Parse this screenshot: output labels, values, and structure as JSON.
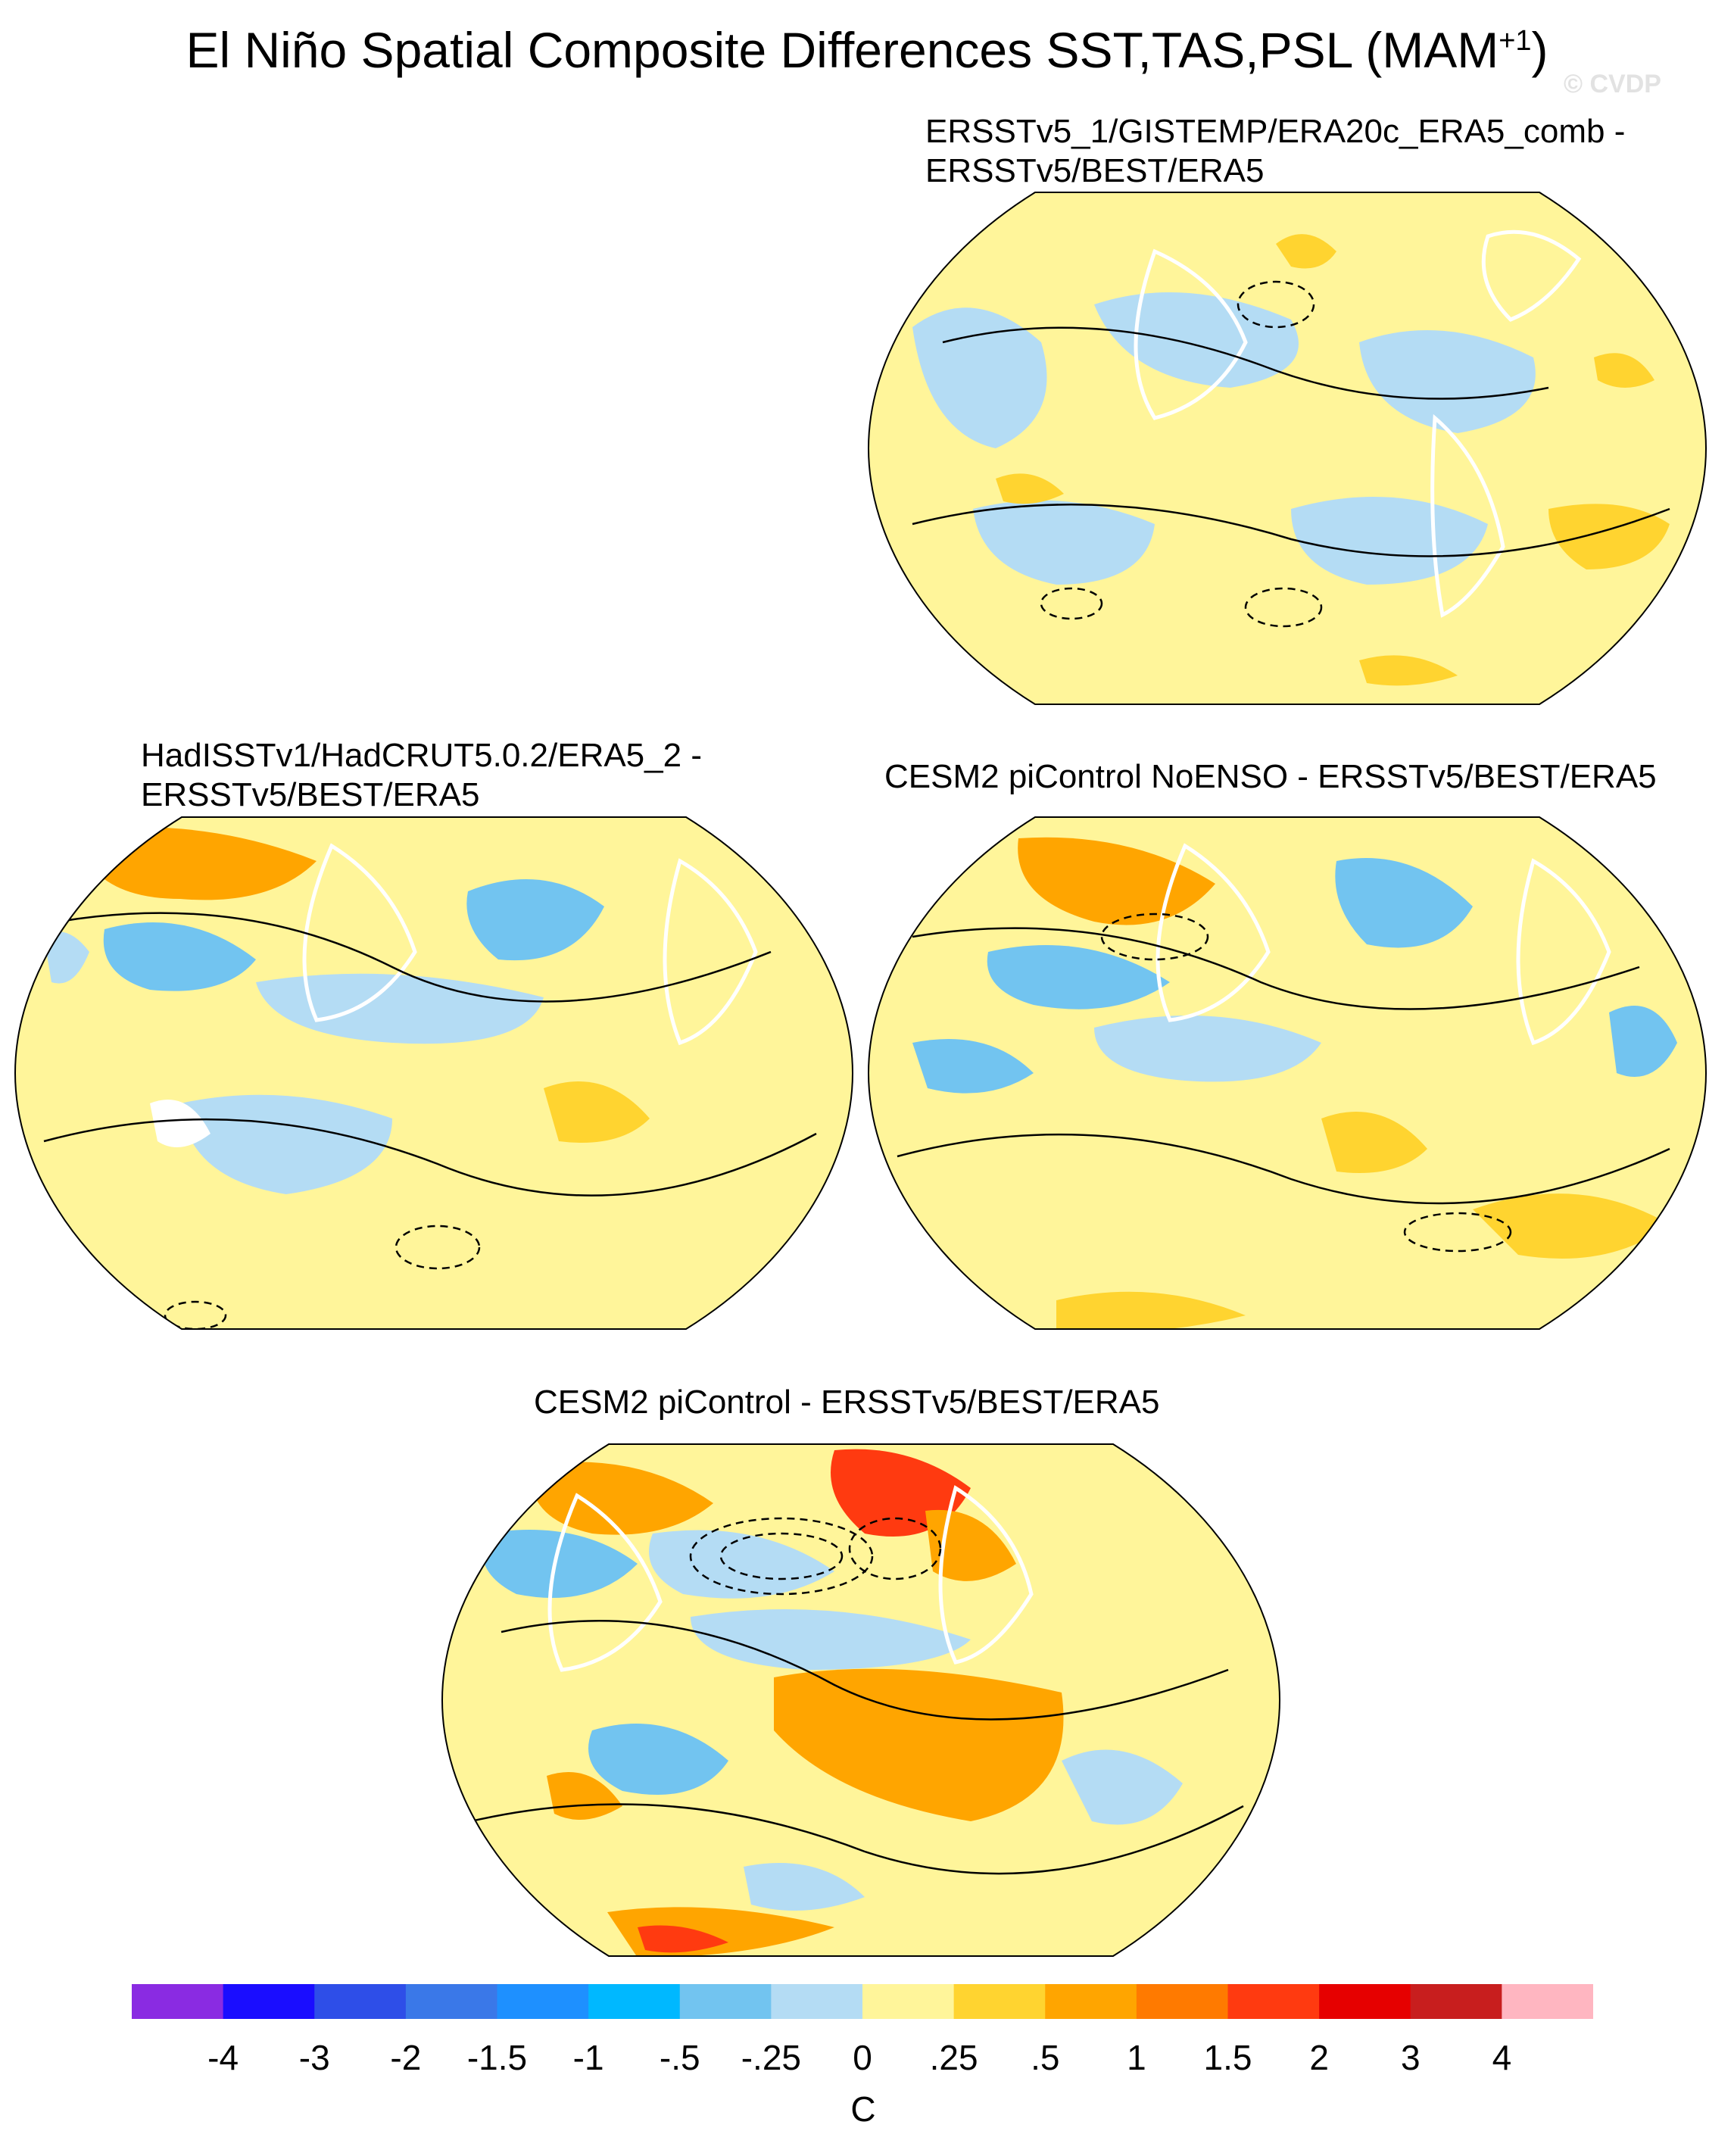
{
  "title": {
    "main": "El Niño Spatial Composite Differences SST,TAS,PSL (MAM",
    "sup": "+1",
    "close": ")"
  },
  "watermark": "© CVDP",
  "panels": [
    {
      "line1": "ERSSTv5_1/GISTEMP/ERA20c_ERA5_comb -",
      "line2": "ERSSTv5/BEST/ERA5"
    },
    {
      "line1": "HadISSTv1/HadCRUT5.0.2/ERA5_2 -",
      "line2": "ERSSTv5/BEST/ERA5"
    },
    {
      "line1": "CESM2 piControl NoENSO - ERSSTv5/BEST/ERA5",
      "line2": ""
    },
    {
      "line1": "CESM2 piControl - ERSSTv5/BEST/ERA5",
      "line2": ""
    }
  ],
  "colorbar": {
    "colors": [
      "#8a2be2",
      "#1a0dff",
      "#2e4ee8",
      "#3a78e8",
      "#1e90ff",
      "#00b8ff",
      "#72c4f0",
      "#b4dcf4",
      "#fff59a",
      "#ffd430",
      "#ffa500",
      "#ff7a00",
      "#ff3a10",
      "#e60000",
      "#c81e1e",
      "#ffb6c1"
    ],
    "labels": [
      "-4",
      "-3",
      "-2",
      "-1.5",
      "-1",
      "-.5",
      "-.25",
      "0",
      ".25",
      ".5",
      "1",
      "1.5",
      "2",
      "3",
      "4"
    ],
    "units": "C"
  },
  "colors": {
    "ocean_base": "#fff59a",
    "cool": "#b4dcf4",
    "warm": "#ffd430",
    "land_outline": "#ffffff",
    "contour": "#000000"
  }
}
